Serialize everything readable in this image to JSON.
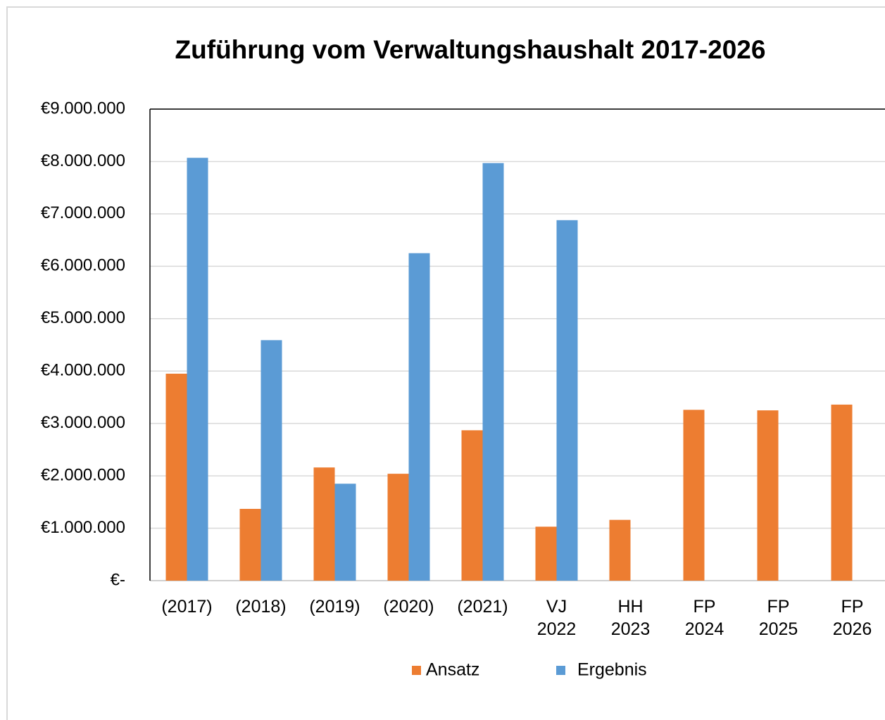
{
  "chart_data": {
    "type": "bar",
    "title": "Zuführung vom Verwaltungshaushalt 2017-2026",
    "categories": [
      "(2017)",
      "(2018)",
      "(2019)",
      "(2020)",
      "(2021)",
      "VJ 2022",
      "HH 2023",
      "FP 2024",
      "FP 2025",
      "FP 2026"
    ],
    "series": [
      {
        "name": "Ansatz",
        "color": "#ed7d31",
        "values": [
          3950000,
          1370000,
          2160000,
          2040000,
          2870000,
          1030000,
          1160000,
          3260000,
          3250000,
          3360000
        ]
      },
      {
        "name": "Ergebnis",
        "color": "#5b9bd5",
        "values": [
          8070000,
          4590000,
          1850000,
          6250000,
          7970000,
          6880000,
          null,
          null,
          null,
          null
        ]
      }
    ],
    "ylim": [
      0,
      9000000
    ],
    "yticks": [
      {
        "value": 0,
        "label": "€-"
      },
      {
        "value": 1000000,
        "label": "€1.000.000"
      },
      {
        "value": 2000000,
        "label": "€2.000.000"
      },
      {
        "value": 3000000,
        "label": "€3.000.000"
      },
      {
        "value": 4000000,
        "label": "€4.000.000"
      },
      {
        "value": 5000000,
        "label": "€5.000.000"
      },
      {
        "value": 6000000,
        "label": "€6.000.000"
      },
      {
        "value": 7000000,
        "label": "€7.000.000"
      },
      {
        "value": 8000000,
        "label": "€8.000.000"
      },
      {
        "value": 9000000,
        "label": "€9.000.000"
      }
    ],
    "grid": true,
    "legend": "bottom"
  }
}
